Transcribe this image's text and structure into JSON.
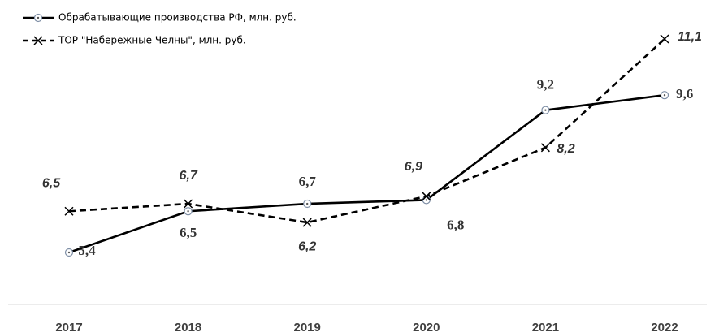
{
  "chart_data": {
    "type": "line",
    "categories": [
      "2017",
      "2018",
      "2019",
      "2020",
      "2021",
      "2022"
    ],
    "series": [
      {
        "name": "Обрабатывающие производства РФ, млн. руб.",
        "color": "#000000",
        "style": "solid",
        "marker": "circle",
        "values": [
          5.4,
          6.5,
          6.7,
          6.8,
          9.2,
          9.6
        ],
        "value_labels": [
          "5,4",
          "6,5",
          "6,7",
          "6,8",
          "9,2",
          "9,6"
        ]
      },
      {
        "name": "ТОР \"Набережные Челны\", млн. руб.",
        "color": "#000000",
        "style": "dashed",
        "marker": "x",
        "values": [
          6.5,
          6.7,
          6.2,
          6.9,
          8.2,
          11.1
        ],
        "value_labels": [
          "6,5",
          "6,7",
          "6,2",
          "6,9",
          "8,2",
          "11,1"
        ]
      }
    ]
  }
}
